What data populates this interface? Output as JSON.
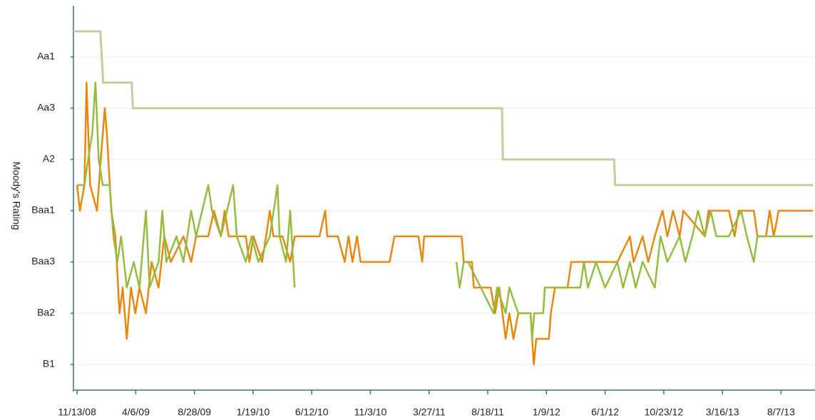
{
  "chart_data": {
    "type": "line",
    "y_label": "Moody's Rating",
    "xlim": [
      "11/4/08",
      "10/24/13"
    ],
    "xticks": [
      "11/13/08",
      "4/6/09",
      "8/28/09",
      "1/19/10",
      "6/12/10",
      "11/3/10",
      "3/27/11",
      "8/18/11",
      "1/9/12",
      "6/1/12",
      "10/23/12",
      "3/16/13",
      "8/7/13"
    ],
    "ylim": [
      15,
      0
    ],
    "yticks": [
      {
        "value": 2,
        "label": "Aa1"
      },
      {
        "value": 4,
        "label": "Aa3"
      },
      {
        "value": 6,
        "label": "A2"
      },
      {
        "value": 8,
        "label": "Baa1"
      },
      {
        "value": 10,
        "label": "Baa3"
      },
      {
        "value": 12,
        "label": "Ba2"
      },
      {
        "value": 14,
        "label": "B1"
      }
    ],
    "grid": true,
    "series": [
      {
        "color": "#cbc99c",
        "x": [
          "11/4/08",
          "1/9/09",
          "1/16/09",
          "3/27/09",
          "3/30/09",
          "9/22/11",
          "9/24/11",
          "6/23/12",
          "6/26/12",
          "10/24/13"
        ],
        "values": [
          1,
          1,
          3,
          3,
          4,
          4,
          6,
          6,
          7,
          7
        ]
      },
      {
        "color": "#e8870e",
        "x": [
          "11/13/08",
          "11/20/08",
          "12/1/08",
          "12/6/08",
          "12/15/08",
          "1/1/09",
          "1/10/09",
          "1/20/09",
          "1/25/09",
          "2/5/09",
          "2/15/09",
          "2/25/09",
          "3/5/09",
          "3/15/09",
          "3/25/09",
          "4/5/09",
          "4/15/09",
          "5/1/09",
          "5/15/09",
          "6/1/09",
          "6/15/09",
          "7/1/09",
          "8/1/09",
          "8/20/09",
          "9/1/09",
          "10/1/09",
          "10/15/09",
          "11/1/09",
          "11/10/09",
          "11/20/09",
          "1/1/10",
          "1/10/10",
          "1/20/10",
          "2/10/10",
          "2/20/10",
          "3/1/10",
          "3/10/10",
          "4/1/10",
          "4/20/10",
          "5/1/10",
          "6/1/10",
          "7/1/10",
          "7/15/10",
          "7/20/10",
          "8/15/10",
          "9/1/10",
          "9/10/10",
          "9/20/10",
          "10/1/10",
          "10/10/10",
          "12/20/10",
          "1/1/11",
          "3/1/11",
          "3/10/11",
          "3/15/11",
          "6/15/11",
          "6/20/11",
          "7/10/11",
          "7/15/11",
          "8/25/11",
          "9/5/11",
          "9/15/11",
          "10/1/11",
          "10/10/11",
          "10/20/11",
          "11/1/11",
          "12/1/11",
          "12/5/11",
          "12/9/11",
          "12/15/11",
          "1/15/12",
          "1/20/12",
          "1/30/12",
          "3/1/12",
          "3/10/12",
          "5/1/12",
          "7/1/12",
          "8/1/12",
          "8/10/12",
          "9/1/12",
          "9/15/12",
          "10/1/12",
          "10/20/12",
          "11/1/12",
          "11/15/12",
          "12/1/12",
          "12/10/12",
          "2/1/13",
          "2/10/13",
          "4/1/13",
          "4/15/13",
          "4/25/13",
          "6/1/13",
          "6/10/13",
          "7/1/13",
          "7/10/13",
          "7/20/13",
          "8/1/13",
          "10/24/13"
        ],
        "values": [
          7,
          8,
          7,
          3,
          7,
          8,
          6,
          4,
          5,
          8,
          9,
          12,
          11,
          13,
          11,
          12,
          11,
          12,
          10,
          11,
          9,
          10,
          9,
          10,
          9,
          9,
          8,
          9,
          8,
          9,
          9,
          10,
          9,
          10,
          9,
          8,
          9,
          9,
          10,
          9,
          9,
          9,
          8,
          9,
          9,
          10,
          9,
          10,
          9,
          10,
          10,
          9,
          9,
          10,
          9,
          9,
          10,
          10,
          11,
          11,
          12,
          11,
          13,
          12,
          13,
          12,
          12,
          13,
          14,
          13,
          13,
          12,
          11,
          11,
          10,
          10,
          10,
          9,
          10,
          9,
          10,
          9,
          8,
          9,
          8,
          9,
          8,
          9,
          8,
          8,
          9,
          8,
          8,
          9,
          9,
          8,
          9,
          8,
          8
        ]
      },
      {
        "color": "#92bd3f",
        "x": [
          "11/13/08",
          "12/1/08",
          "12/10/08",
          "12/20/08",
          "12/28/08",
          "1/5/09",
          "1/15/09",
          "2/1/09",
          "2/10/09",
          "2/20/09",
          "3/1/09",
          "3/15/09",
          "4/1/09",
          "4/15/09",
          "5/1/09",
          "5/10/09",
          "6/1/09",
          "6/10/09",
          "6/20/09",
          "7/15/09",
          "8/1/09",
          "8/20/09",
          "9/1/09",
          "10/1/09",
          "10/10/09",
          "11/1/09",
          "12/1/09",
          "12/10/09",
          "1/1/10",
          "1/15/10",
          "2/1/10",
          "3/1/10",
          "3/20/10",
          "3/25/10",
          "4/10/10",
          "4/20/10",
          "5/1/10",
          "1/1/11",
          "6/2/11",
          "6/10/11",
          "6/20/11",
          "7/1/11",
          "8/1/11",
          "9/1/11",
          "9/10/11",
          "10/1/11",
          "10/10/11",
          "11/1/11",
          "12/1/11",
          "12/5/11",
          "12/10/11",
          "1/1/12",
          "1/5/12",
          "3/1/12",
          "4/1/12",
          "4/10/12",
          "4/20/12",
          "5/10/12",
          "6/1/12",
          "7/1/12",
          "7/15/12",
          "8/1/12",
          "8/15/12",
          "9/1/12",
          "10/1/12",
          "10/15/12",
          "11/1/12",
          "12/1/12",
          "12/15/12",
          "1/1/13",
          "1/15/13",
          "2/1/13",
          "2/15/13",
          "3/1/13",
          "4/1/13",
          "5/1/13",
          "5/15/13",
          "6/1/13",
          "6/10/13",
          "7/1/13",
          "10/24/13"
        ],
        "values": [
          7,
          7,
          6,
          5,
          3,
          6,
          7,
          7,
          9,
          10,
          9,
          11,
          10,
          11,
          8,
          11,
          10,
          8,
          10,
          9,
          10,
          8,
          9,
          7,
          8,
          9,
          7,
          9,
          10,
          9,
          10,
          9,
          7,
          9,
          10,
          8,
          11,
          null,
          10,
          11,
          10,
          10,
          11,
          12,
          11,
          12,
          11,
          12,
          12,
          13,
          12,
          12,
          11,
          11,
          11,
          10,
          11,
          10,
          11,
          10,
          11,
          10,
          11,
          10,
          11,
          9,
          10,
          9,
          10,
          9,
          8,
          9,
          8,
          9,
          9,
          8,
          9,
          10,
          9,
          9,
          9
        ]
      }
    ]
  }
}
